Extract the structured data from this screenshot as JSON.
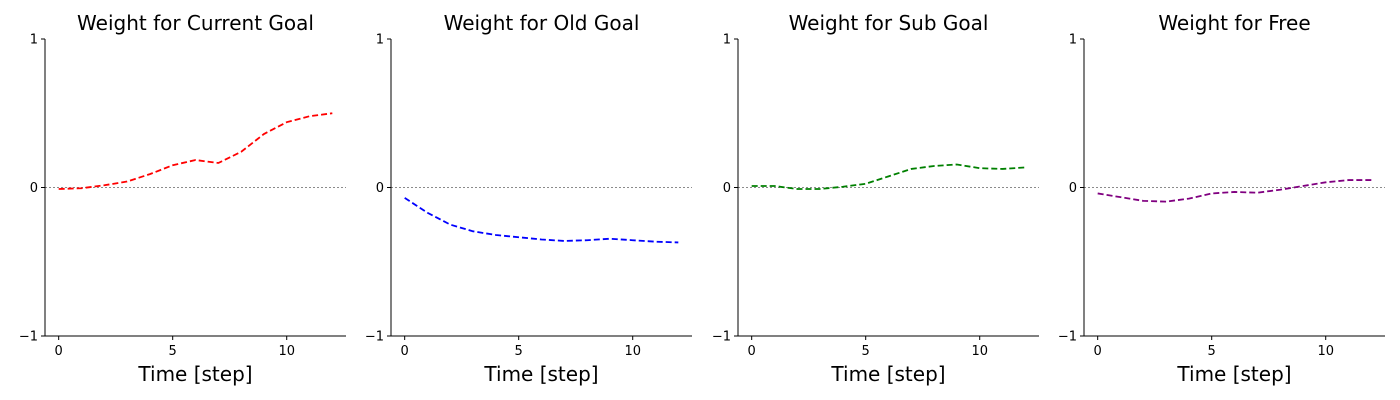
{
  "chart_data": [
    {
      "type": "line",
      "title": "Weight for Current Goal",
      "xlabel": "Time [step]",
      "ylabel": "",
      "xlim": [
        -0.6,
        12.6
      ],
      "ylim": [
        -1,
        1
      ],
      "xticks": [
        0,
        5,
        10
      ],
      "yticks": [
        -1,
        0,
        1
      ],
      "reference_line_y": 0,
      "grid": false,
      "series": [
        {
          "color": "#ff0000",
          "style": "dashed",
          "x": [
            0,
            1,
            2,
            3,
            4,
            5,
            6,
            7,
            8,
            9,
            10,
            11,
            12
          ],
          "y": [
            -0.01,
            -0.005,
            0.015,
            0.04,
            0.09,
            0.15,
            0.185,
            0.165,
            0.24,
            0.36,
            0.44,
            0.48,
            0.5
          ]
        }
      ]
    },
    {
      "type": "line",
      "title": "Weight for Old Goal",
      "xlabel": "Time [step]",
      "ylabel": "",
      "xlim": [
        -0.6,
        12.6
      ],
      "ylim": [
        -1,
        1
      ],
      "xticks": [
        0,
        5,
        10
      ],
      "yticks": [
        -1,
        0,
        1
      ],
      "reference_line_y": 0,
      "grid": false,
      "series": [
        {
          "color": "#0000ff",
          "style": "dashed",
          "x": [
            0,
            1,
            2,
            3,
            4,
            5,
            6,
            7,
            8,
            9,
            10,
            11,
            12
          ],
          "y": [
            -0.07,
            -0.17,
            -0.25,
            -0.295,
            -0.32,
            -0.335,
            -0.35,
            -0.36,
            -0.355,
            -0.345,
            -0.355,
            -0.365,
            -0.37
          ]
        }
      ]
    },
    {
      "type": "line",
      "title": "Weight for Sub Goal",
      "xlabel": "Time [step]",
      "ylabel": "",
      "xlim": [
        -0.6,
        12.6
      ],
      "ylim": [
        -1,
        1
      ],
      "xticks": [
        0,
        5,
        10
      ],
      "yticks": [
        -1,
        0,
        1
      ],
      "reference_line_y": 0,
      "grid": false,
      "series": [
        {
          "color": "#008000",
          "style": "dashed",
          "x": [
            0,
            1,
            2,
            3,
            4,
            5,
            6,
            7,
            8,
            9,
            10,
            11,
            12
          ],
          "y": [
            0.01,
            0.01,
            -0.01,
            -0.01,
            0.005,
            0.025,
            0.075,
            0.125,
            0.145,
            0.155,
            0.13,
            0.125,
            0.135
          ]
        }
      ]
    },
    {
      "type": "line",
      "title": "Weight for Free",
      "xlabel": "Time [step]",
      "ylabel": "",
      "xlim": [
        -0.6,
        12.6
      ],
      "ylim": [
        -1,
        1
      ],
      "xticks": [
        0,
        5,
        10
      ],
      "yticks": [
        -1,
        0,
        1
      ],
      "reference_line_y": 0,
      "grid": false,
      "series": [
        {
          "color": "#800080",
          "style": "dashed",
          "x": [
            0,
            1,
            2,
            3,
            4,
            5,
            6,
            7,
            8,
            9,
            10,
            11,
            12
          ],
          "y": [
            -0.04,
            -0.065,
            -0.09,
            -0.095,
            -0.075,
            -0.04,
            -0.03,
            -0.035,
            -0.015,
            0.01,
            0.035,
            0.05,
            0.05
          ]
        }
      ]
    }
  ]
}
